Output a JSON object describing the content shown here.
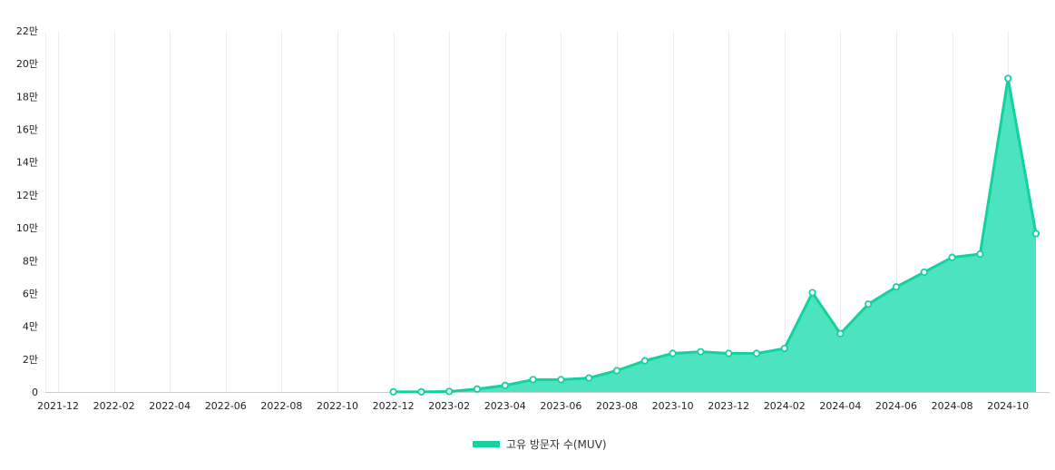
{
  "chart_data": {
    "type": "area",
    "x": [
      "2021-12",
      "2022-01",
      "2022-02",
      "2022-03",
      "2022-04",
      "2022-05",
      "2022-06",
      "2022-07",
      "2022-08",
      "2022-09",
      "2022-10",
      "2022-11",
      "2022-12",
      "2023-01",
      "2023-02",
      "2023-03",
      "2023-04",
      "2023-05",
      "2023-06",
      "2023-07",
      "2023-08",
      "2023-09",
      "2023-10",
      "2023-11",
      "2023-12",
      "2024-01",
      "2024-02",
      "2024-03",
      "2024-04",
      "2024-05",
      "2024-06",
      "2024-07",
      "2024-08",
      "2024-09",
      "2024-10",
      "2024-11"
    ],
    "x_tick_labels": [
      "2021-12",
      "2022-02",
      "2022-04",
      "2022-06",
      "2022-08",
      "2022-10",
      "2022-12",
      "2023-02",
      "2023-04",
      "2023-06",
      "2023-08",
      "2023-10",
      "2023-12",
      "2024-02",
      "2024-04",
      "2024-06",
      "2024-08",
      "2024-10"
    ],
    "series": [
      {
        "name": "고유 방문자 수(MUV)",
        "color": "#12d2a0",
        "fill": "#4ce3c0",
        "values": [
          null,
          null,
          null,
          null,
          null,
          null,
          null,
          null,
          null,
          null,
          null,
          null,
          100,
          100,
          300,
          1800,
          4000,
          7500,
          7500,
          8500,
          13000,
          19000,
          23500,
          24500,
          23500,
          23500,
          26500,
          60500,
          35500,
          53500,
          64000,
          73000,
          82000,
          84000,
          191000,
          96500
        ]
      }
    ],
    "y_tick_labels": [
      "0",
      "2만",
      "4만",
      "6만",
      "8만",
      "10만",
      "12만",
      "14만",
      "16만",
      "18만",
      "20만",
      "22만"
    ],
    "ylim": [
      0,
      220000
    ],
    "legend_position": "bottom",
    "grid": "vertical"
  }
}
